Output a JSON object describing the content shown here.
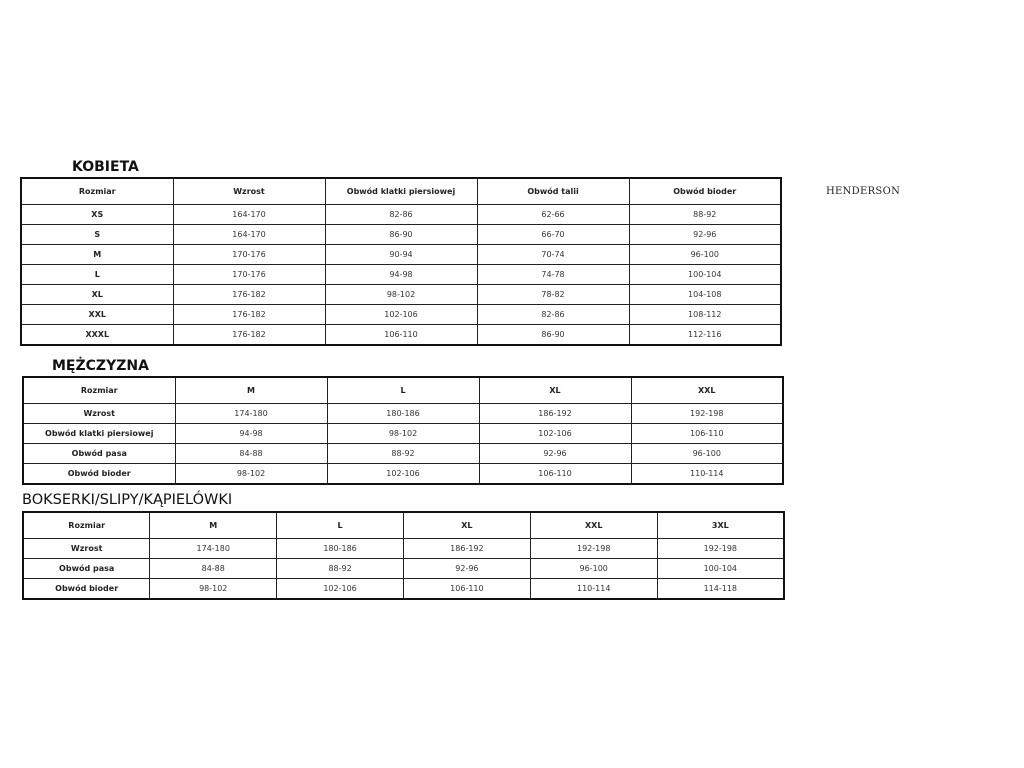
{
  "brand": "HENDERSON",
  "women": {
    "title": "KOBIETA",
    "headers": [
      "Rozmiar",
      "Wzrost",
      "Obwód klatki piersiowej",
      "Obwód talii",
      "Obwód bioder"
    ],
    "rows": [
      [
        "XS",
        "164-170",
        "82-86",
        "62-66",
        "88-92"
      ],
      [
        "S",
        "164-170",
        "86-90",
        "66-70",
        "92-96"
      ],
      [
        "M",
        "170-176",
        "90-94",
        "70-74",
        "96-100"
      ],
      [
        "L",
        "170-176",
        "94-98",
        "74-78",
        "100-104"
      ],
      [
        "XL",
        "176-182",
        "98-102",
        "78-82",
        "104-108"
      ],
      [
        "XXL",
        "176-182",
        "102-106",
        "82-86",
        "108-112"
      ],
      [
        "XXXL",
        "176-182",
        "106-110",
        "86-90",
        "112-116"
      ]
    ]
  },
  "men": {
    "title": "MĘŻCZYZNA",
    "headers": [
      "Rozmiar",
      "M",
      "L",
      "XL",
      "XXL"
    ],
    "rows": [
      [
        "Wzrost",
        "174-180",
        "180-186",
        "186-192",
        "192-198"
      ],
      [
        "Obwód klatki piersiowej",
        "94-98",
        "98-102",
        "102-106",
        "106-110"
      ],
      [
        "Obwód pasa",
        "84-88",
        "88-92",
        "92-96",
        "96-100"
      ],
      [
        "Obwód bioder",
        "98-102",
        "102-106",
        "106-110",
        "110-114"
      ]
    ]
  },
  "underwear": {
    "title": "BOKSERKI/SLIPY/KĄPIELÓWKI",
    "headers": [
      "Rozmiar",
      "M",
      "L",
      "XL",
      "XXL",
      "3XL"
    ],
    "rows": [
      [
        "Wzrost",
        "174-180",
        "180-186",
        "186-192",
        "192-198",
        "192-198"
      ],
      [
        "Obwód pasa",
        "84-88",
        "88-92",
        "92-96",
        "96-100",
        "100-104"
      ],
      [
        "Obwód bioder",
        "98-102",
        "102-106",
        "106-110",
        "110-114",
        "114-118"
      ]
    ]
  }
}
